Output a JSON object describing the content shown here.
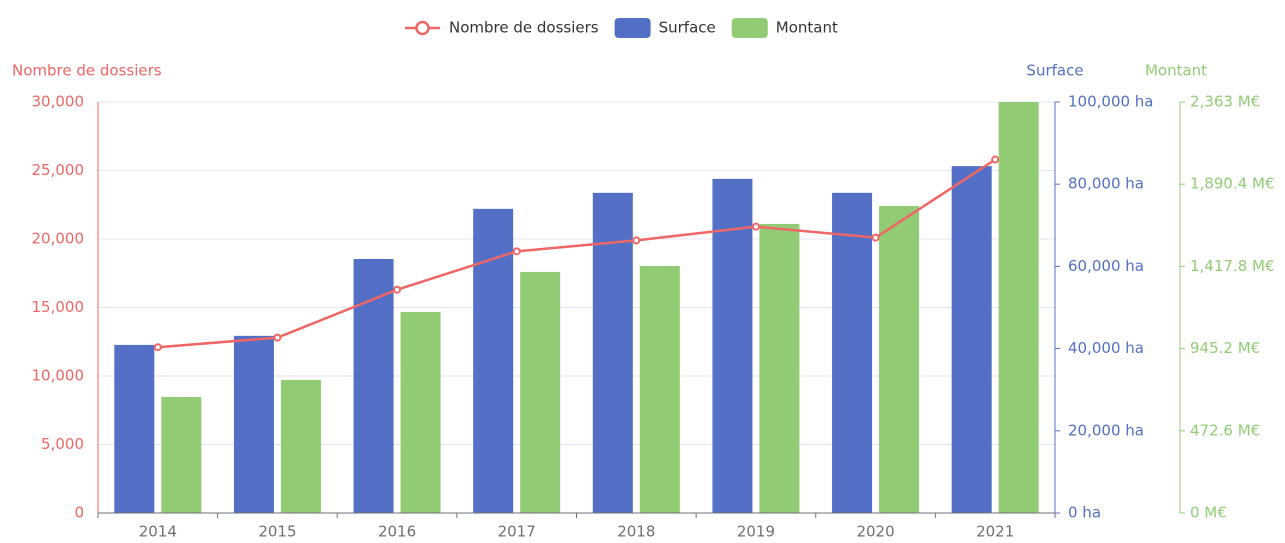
{
  "chart_data": {
    "type": "bar",
    "categories": [
      "2014",
      "2015",
      "2016",
      "2017",
      "2018",
      "2019",
      "2020",
      "2021"
    ],
    "series": [
      {
        "name": "Nombre de dossiers",
        "type": "line",
        "color": "#ee6666",
        "axis": "y",
        "values": [
          12100,
          12800,
          16300,
          19100,
          19900,
          20900,
          20100,
          25800
        ]
      },
      {
        "name": "Surface",
        "type": "bar",
        "color": "#5470c6",
        "axis": "y2",
        "values": [
          40900,
          43100,
          61800,
          74000,
          77900,
          81300,
          77900,
          84400
        ]
      },
      {
        "name": "Montant",
        "type": "bar",
        "color": "#91cc75",
        "axis": "y3",
        "values": [
          667,
          765,
          1156,
          1386,
          1420,
          1662,
          1765,
          2363
        ]
      }
    ],
    "ylabel": "Nombre de dossiers",
    "y2label": "Surface",
    "y3label": "Montant",
    "ylim": [
      0,
      30000
    ],
    "yticks": [
      0,
      {
        "value": 5000,
        "label": "5,000"
      },
      {
        "value": 10000,
        "label": "10,000"
      },
      {
        "value": 15000,
        "label": "15,000"
      },
      {
        "value": 20000,
        "label": "20,000"
      },
      {
        "value": 25000,
        "label": "25,000"
      },
      {
        "value": 30000,
        "label": "30,000"
      }
    ],
    "y2lim": [
      0,
      100000
    ],
    "y2ticks": [
      {
        "value": 0,
        "label": "0 ha"
      },
      {
        "value": 20000,
        "label": "20,000 ha"
      },
      {
        "value": 40000,
        "label": "40,000 ha"
      },
      {
        "value": 60000,
        "label": "60,000 ha"
      },
      {
        "value": 80000,
        "label": "80,000 ha"
      },
      {
        "value": 100000,
        "label": "100,000 ha"
      }
    ],
    "y3lim": [
      0,
      2363
    ],
    "y3ticks": [
      {
        "value": 0,
        "label": "0 M€"
      },
      {
        "value": 472.6,
        "label": "472.6 M€"
      },
      {
        "value": 945.2,
        "label": "945.2 M€"
      },
      {
        "value": 1417.8,
        "label": "1,417.8 M€"
      },
      {
        "value": 1890.4,
        "label": "1,890.4 M€"
      },
      {
        "value": 2363,
        "label": "2,363 M€"
      }
    ],
    "grid": true,
    "legend": "top"
  }
}
